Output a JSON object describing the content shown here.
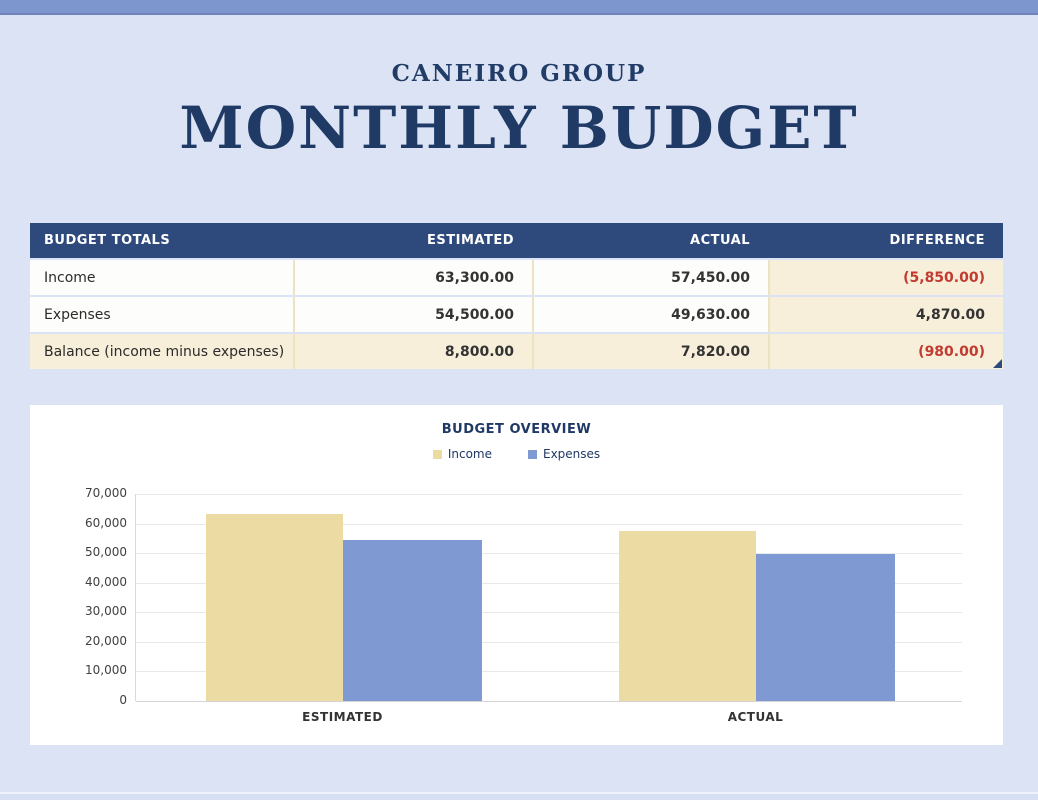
{
  "page": {
    "background": "#dce3f4",
    "topbar_color": "#7e96ce",
    "header": {
      "company": "CANEIRO GROUP",
      "title": "MONTHLY BUDGET",
      "text_color": "#203a66"
    }
  },
  "totals_table": {
    "header_bg": "#2e4a7d",
    "highlight_bg": "#f7efda",
    "negative_color": "#c23a30",
    "columns": [
      "BUDGET TOTALS",
      "ESTIMATED",
      "ACTUAL",
      "DIFFERENCE"
    ],
    "rows": [
      {
        "label": "Income",
        "estimated": "63,300.00",
        "actual": "57,450.00",
        "difference": "(5,850.00)",
        "difference_negative": true,
        "highlight": false
      },
      {
        "label": "Expenses",
        "estimated": "54,500.00",
        "actual": "49,630.00",
        "difference": "4,870.00",
        "difference_negative": false,
        "highlight": false
      },
      {
        "label": "Balance (income minus expenses)",
        "estimated": "8,800.00",
        "actual": "7,820.00",
        "difference": "(980.00)",
        "difference_negative": true,
        "highlight": true
      }
    ]
  },
  "chart_data": {
    "type": "bar",
    "title": "BUDGET OVERVIEW",
    "categories": [
      "ESTIMATED",
      "ACTUAL"
    ],
    "series": [
      {
        "name": "Income",
        "values": [
          63300,
          57450
        ],
        "color": "#ecdca4"
      },
      {
        "name": "Expenses",
        "values": [
          54500,
          49630
        ],
        "color": "#7f9ad2"
      }
    ],
    "ymax": 70000,
    "ylim": [
      0,
      70000
    ],
    "tick_labels": [
      "70,000",
      "60,000",
      "50,000",
      "40,000",
      "30,000",
      "20,000",
      "10,000",
      "0"
    ],
    "grid": "horizontal",
    "legend_position": "top",
    "xlabel": "",
    "ylabel": ""
  }
}
